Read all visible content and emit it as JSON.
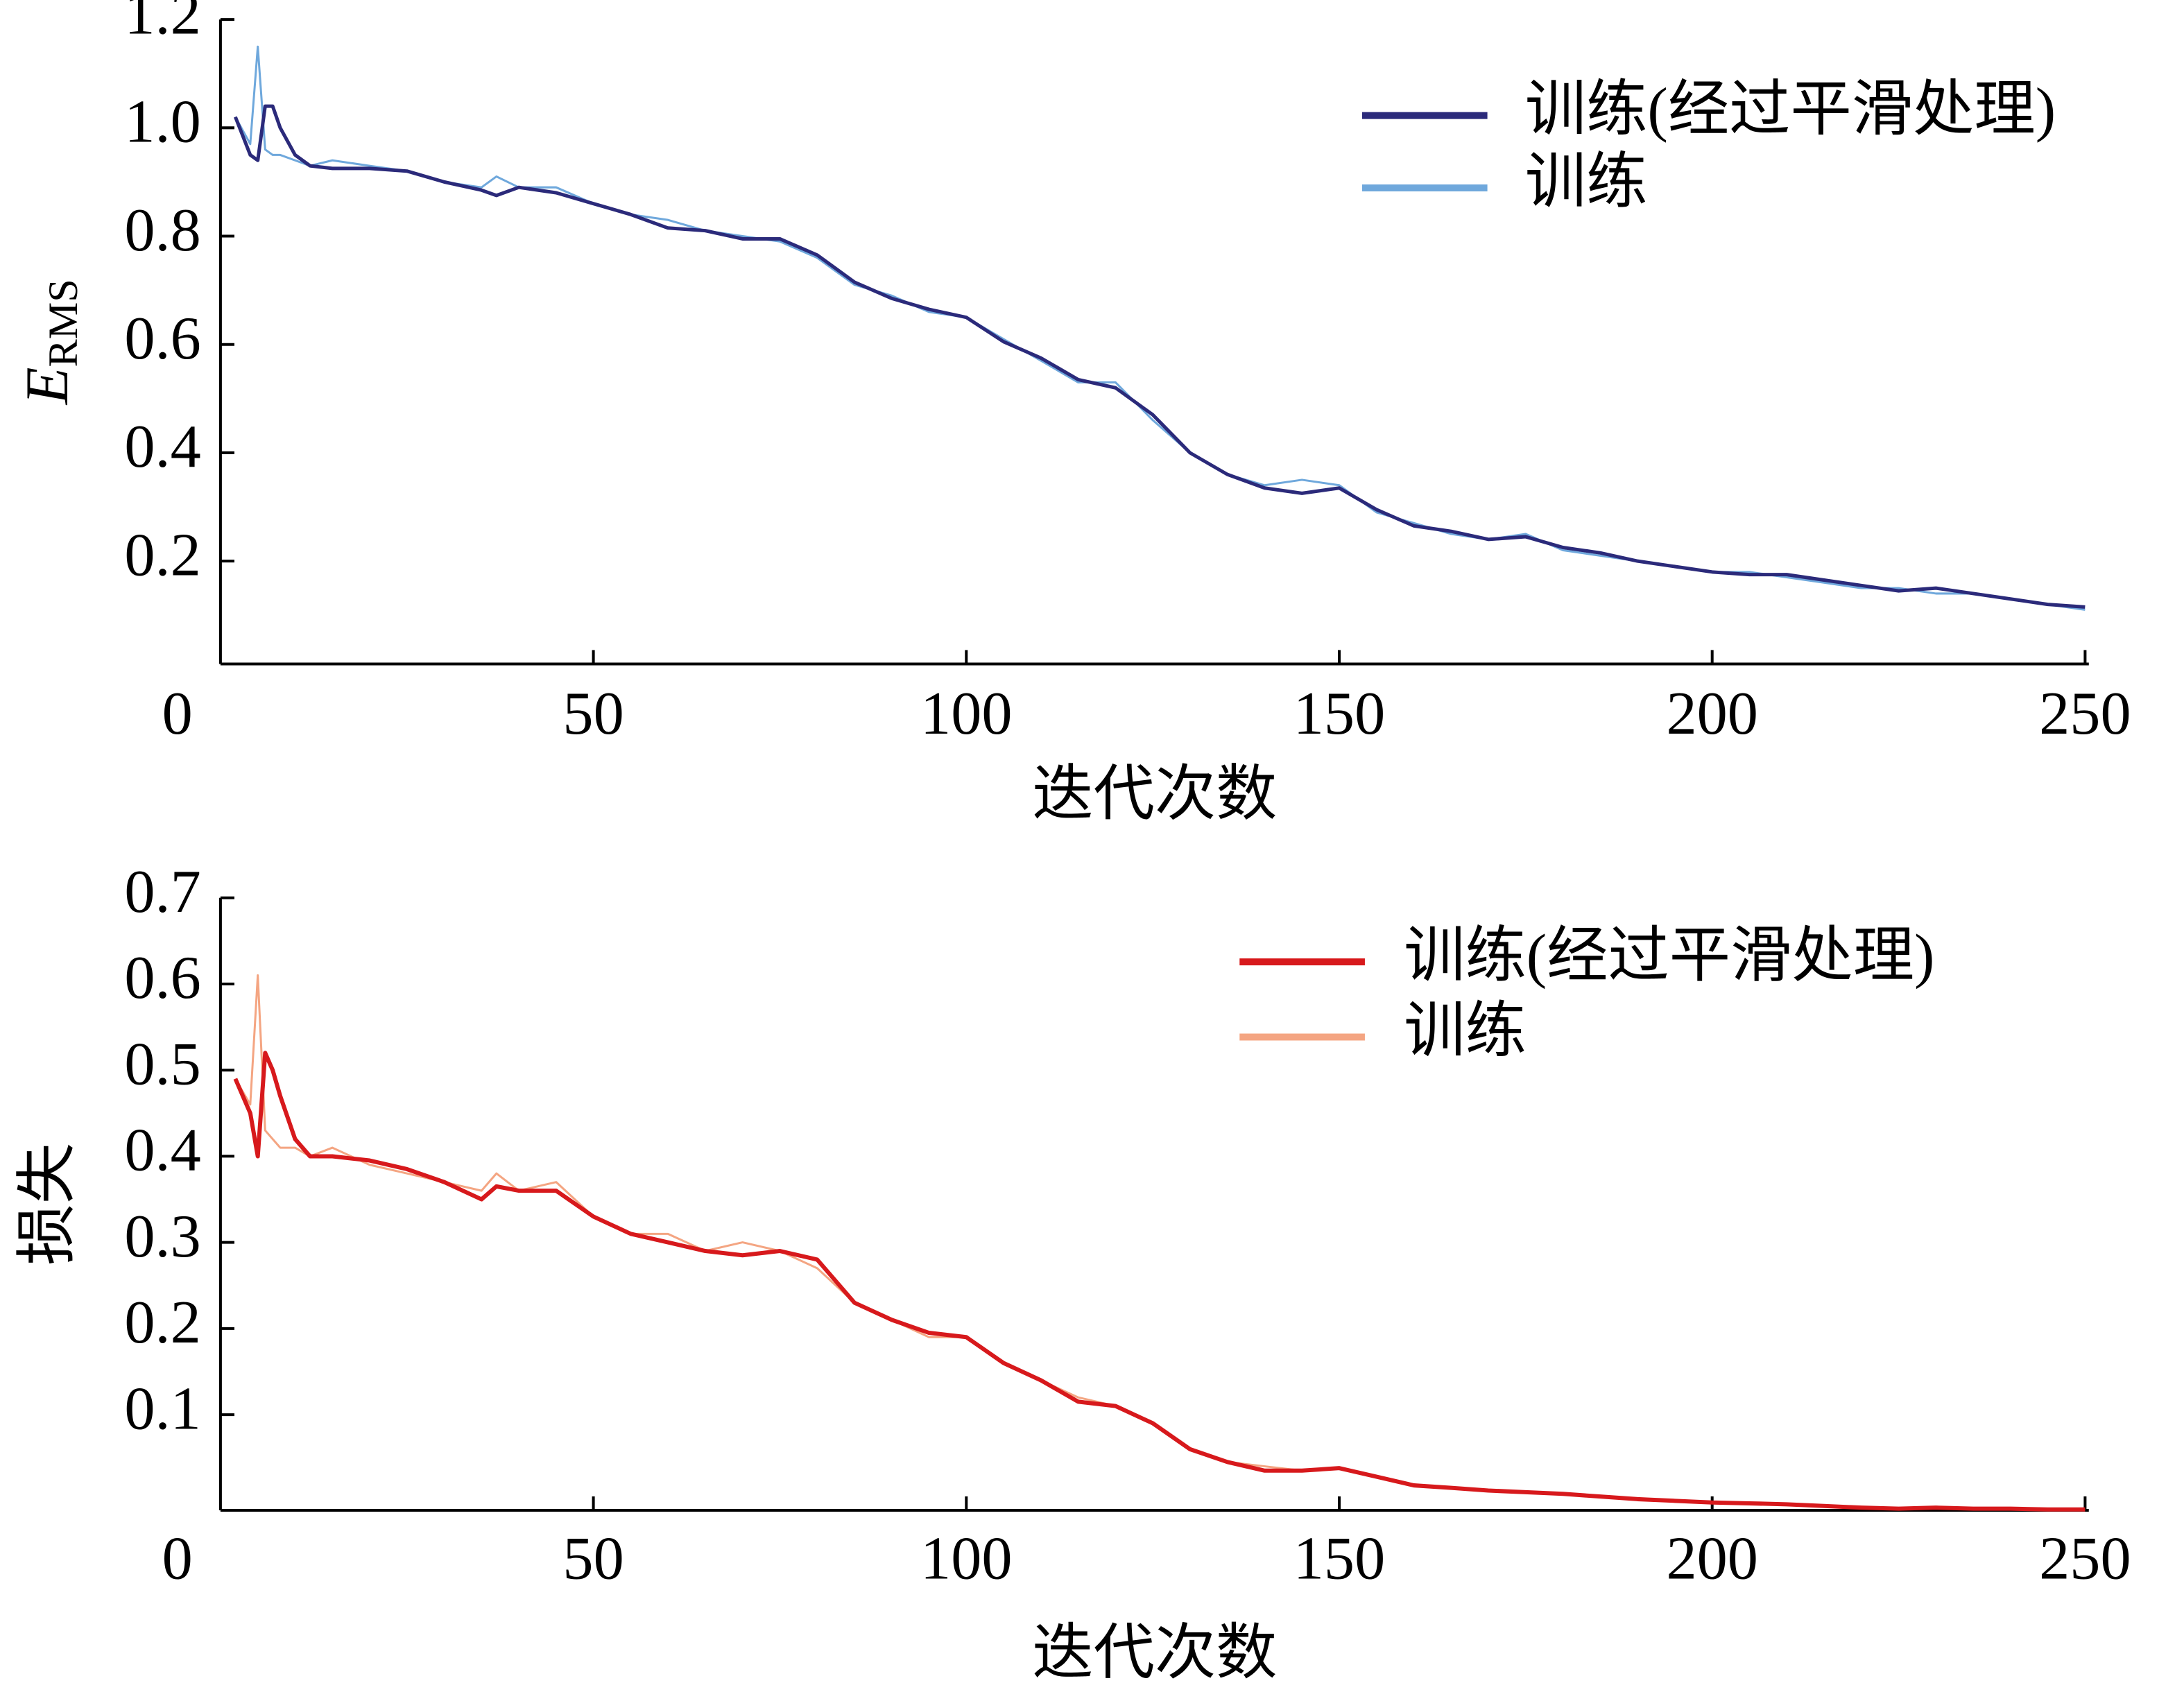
{
  "chart_data": [
    {
      "type": "line",
      "ylabel": "E",
      "ylabel_sub": "RMS",
      "xlabel": "迭代次数",
      "xlim": [
        0,
        250.5
      ],
      "ylim": [
        0.01,
        1.2
      ],
      "xticks": [
        0,
        50,
        100,
        150,
        200,
        250
      ],
      "yticks": [
        0.2,
        0.4,
        0.6,
        0.8,
        {
          "value": 1,
          "label": "1.0"
        },
        1.2
      ],
      "legend": "upper right",
      "x": [
        2,
        4,
        5,
        6,
        7,
        8,
        10,
        12,
        15,
        20,
        25,
        30,
        35,
        37,
        40,
        45,
        50,
        55,
        60,
        65,
        70,
        75,
        80,
        85,
        90,
        95,
        100,
        105,
        110,
        115,
        120,
        125,
        130,
        135,
        140,
        145,
        150,
        155,
        160,
        165,
        170,
        175,
        180,
        185,
        190,
        195,
        200,
        205,
        210,
        215,
        220,
        225,
        230,
        235,
        240,
        245,
        250
      ],
      "series": [
        {
          "name": "训练(经过平滑处理)",
          "color": "#2b2a7a",
          "width": 2.5,
          "values": [
            1.02,
            0.95,
            0.94,
            1.04,
            1.04,
            1.0,
            0.95,
            0.93,
            0.925,
            0.925,
            0.92,
            0.9,
            0.885,
            0.875,
            0.89,
            0.88,
            0.86,
            0.84,
            0.815,
            0.81,
            0.795,
            0.795,
            0.765,
            0.715,
            0.685,
            0.665,
            0.65,
            0.605,
            0.575,
            0.535,
            0.52,
            0.47,
            0.4,
            0.36,
            0.335,
            0.325,
            0.335,
            0.295,
            0.265,
            0.255,
            0.24,
            0.245,
            0.225,
            0.215,
            0.2,
            0.19,
            0.18,
            0.175,
            0.175,
            0.165,
            0.155,
            0.145,
            0.15,
            0.14,
            0.13,
            0.12,
            0.115
          ]
        },
        {
          "name": "训练",
          "color": "#6fa8dc",
          "width": 1.5,
          "values": [
            1.02,
            0.97,
            1.15,
            0.96,
            0.95,
            0.95,
            0.94,
            0.93,
            0.94,
            0.93,
            0.92,
            0.9,
            0.89,
            0.91,
            0.89,
            0.89,
            0.86,
            0.84,
            0.83,
            0.81,
            0.8,
            0.79,
            0.76,
            0.71,
            0.69,
            0.66,
            0.65,
            0.61,
            0.57,
            0.53,
            0.53,
            0.46,
            0.4,
            0.36,
            0.34,
            0.35,
            0.34,
            0.29,
            0.27,
            0.25,
            0.24,
            0.25,
            0.22,
            0.21,
            0.2,
            0.19,
            0.18,
            0.18,
            0.17,
            0.16,
            0.15,
            0.15,
            0.14,
            0.14,
            0.13,
            0.12,
            0.11
          ]
        }
      ]
    },
    {
      "type": "line",
      "ylabel": "损失",
      "xlabel": "迭代次数",
      "xlim": [
        0,
        250.5
      ],
      "ylim": [
        -0.011,
        0.7
      ],
      "xticks": [
        0,
        50,
        100,
        150,
        200,
        250
      ],
      "yticks": [
        0.1,
        0.2,
        0.3,
        0.4,
        0.5,
        0.6,
        0.7
      ],
      "legend": "upper right",
      "x": [
        2,
        4,
        5,
        6,
        7,
        8,
        10,
        12,
        15,
        20,
        25,
        30,
        35,
        37,
        40,
        45,
        50,
        55,
        60,
        65,
        70,
        75,
        80,
        85,
        90,
        95,
        100,
        105,
        110,
        115,
        120,
        125,
        130,
        135,
        140,
        145,
        150,
        155,
        160,
        165,
        170,
        175,
        180,
        185,
        190,
        195,
        200,
        205,
        210,
        215,
        220,
        225,
        230,
        235,
        240,
        245,
        250
      ],
      "series": [
        {
          "name": "训练(经过平滑处理)",
          "color": "#d7191c",
          "width": 3,
          "values": [
            0.49,
            0.45,
            0.4,
            0.52,
            0.5,
            0.47,
            0.42,
            0.4,
            0.4,
            0.395,
            0.385,
            0.37,
            0.35,
            0.365,
            0.36,
            0.36,
            0.33,
            0.31,
            0.3,
            0.29,
            0.285,
            0.29,
            0.28,
            0.23,
            0.21,
            0.195,
            0.19,
            0.16,
            0.14,
            0.115,
            0.11,
            0.09,
            0.06,
            0.045,
            0.035,
            0.035,
            0.038,
            0.028,
            0.018,
            0.015,
            0.012,
            0.01,
            0.008,
            0.005,
            0.002,
            0,
            -0.002,
            -0.003,
            -0.004,
            -0.006,
            -0.008,
            -0.009,
            -0.008,
            -0.009,
            -0.009,
            -0.01,
            -0.01
          ]
        },
        {
          "name": "训练",
          "color": "#f4a582",
          "width": 1.5,
          "values": [
            0.49,
            0.46,
            0.61,
            0.43,
            0.42,
            0.41,
            0.41,
            0.4,
            0.41,
            0.39,
            0.38,
            0.37,
            0.36,
            0.38,
            0.36,
            0.37,
            0.33,
            0.31,
            0.31,
            0.29,
            0.3,
            0.29,
            0.27,
            0.23,
            0.21,
            0.19,
            0.19,
            0.16,
            0.14,
            0.12,
            0.11,
            0.09,
            0.06,
            0.045,
            0.04,
            0.035,
            0.037,
            0.027,
            0.018,
            0.015,
            0.012,
            0.011,
            0.008,
            0.005,
            0.002,
            0.001,
            -0.002,
            -0.003,
            -0.004,
            -0.006,
            -0.007,
            -0.009,
            -0.008,
            -0.009,
            -0.009,
            -0.01,
            -0.009
          ]
        }
      ]
    }
  ]
}
